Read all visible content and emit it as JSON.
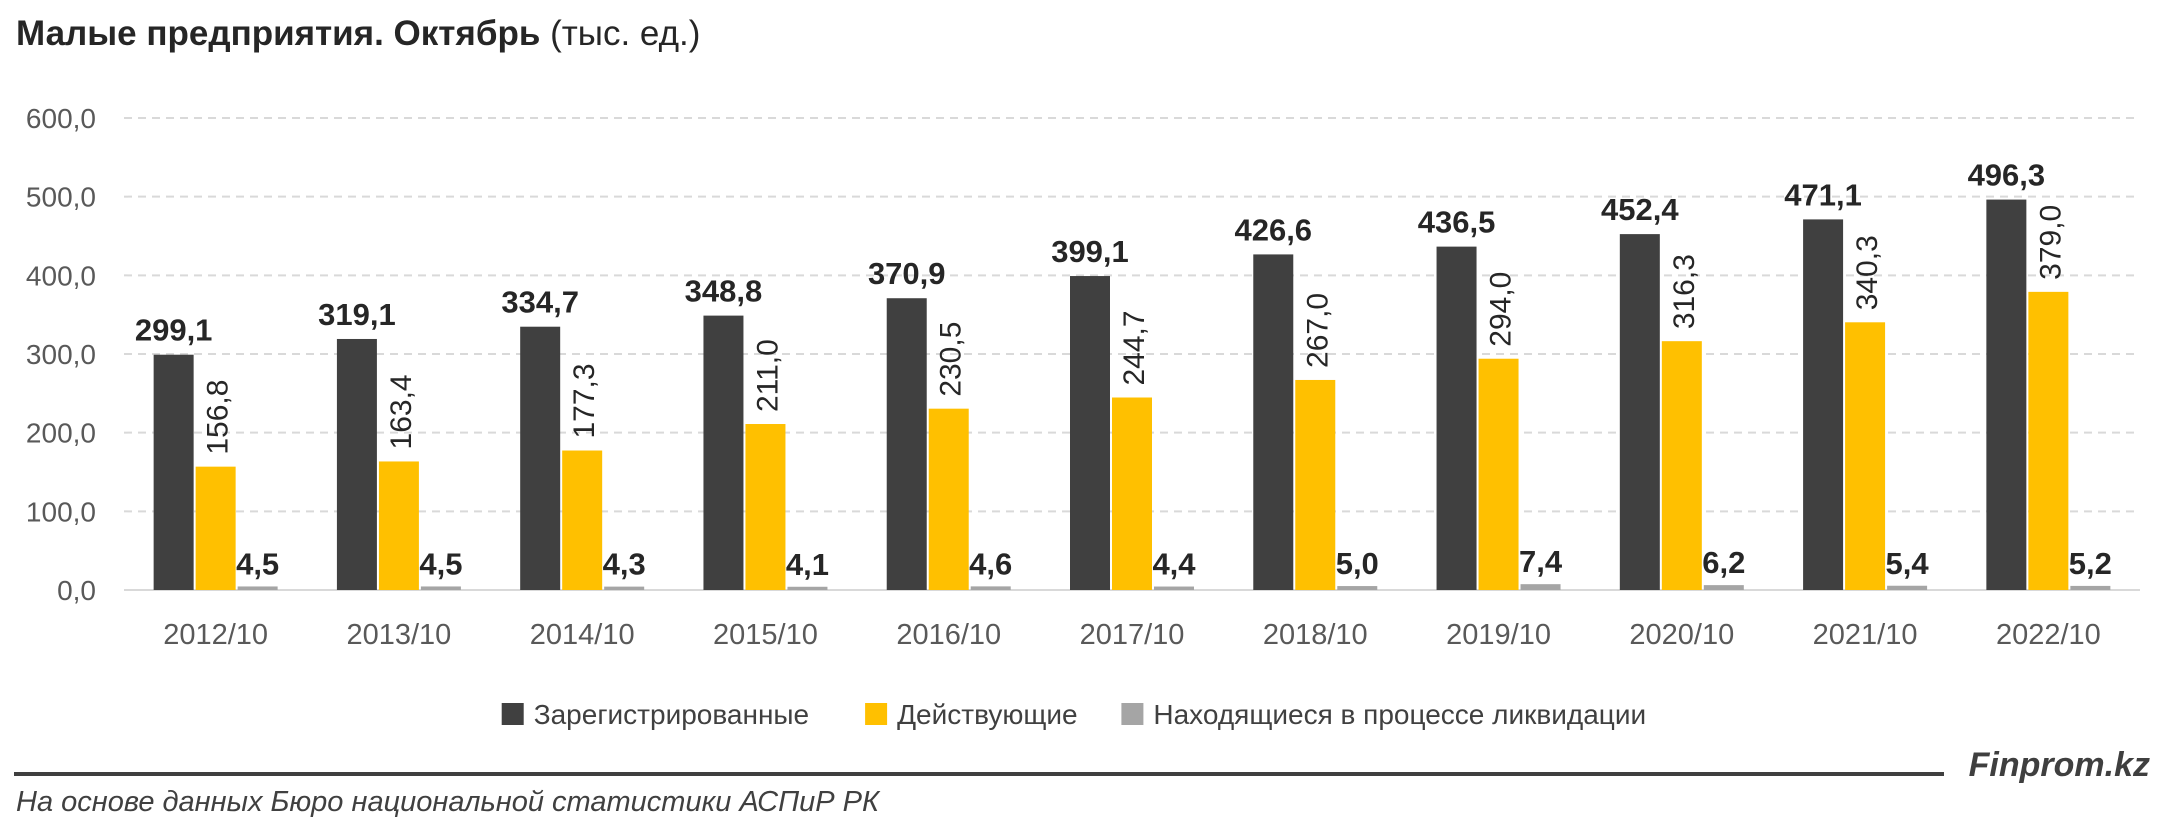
{
  "header": {
    "title_bold": "Малые предприятия. Октябрь",
    "title_unit": "(тыс. ед.)"
  },
  "footer": {
    "brand": "Finprom.kz",
    "source": "На основе данных Бюро национальной статистики АСПиР РК"
  },
  "chart_data": {
    "type": "bar",
    "categories": [
      "2012/10",
      "2013/10",
      "2014/10",
      "2015/10",
      "2016/10",
      "2017/10",
      "2018/10",
      "2019/10",
      "2020/10",
      "2021/10",
      "2022/10"
    ],
    "series": [
      {
        "name": "Зарегистрированные",
        "color": "#404040",
        "values": [
          299.1,
          319.1,
          334.7,
          348.8,
          370.9,
          399.1,
          426.6,
          436.5,
          452.4,
          471.1,
          496.3
        ],
        "labels": [
          "299,1",
          "319,1",
          "334,7",
          "348,8",
          "370,9",
          "399,1",
          "426,6",
          "436,5",
          "452,4",
          "471,1",
          "496,3"
        ]
      },
      {
        "name": "Действующие",
        "color": "#ffc000",
        "values": [
          156.8,
          163.4,
          177.3,
          211.0,
          230.5,
          244.7,
          267.0,
          294.0,
          316.3,
          340.3,
          379.0
        ],
        "labels": [
          "156,8",
          "163,4",
          "177,3",
          "211,0",
          "230,5",
          "244,7",
          "267,0",
          "294,0",
          "316,3",
          "340,3",
          "379,0"
        ]
      },
      {
        "name": "Находящиеся в процессе ликвидации",
        "color": "#a5a5a5",
        "values": [
          4.5,
          4.5,
          4.3,
          4.1,
          4.6,
          4.4,
          5.0,
          7.4,
          6.2,
          5.4,
          5.2
        ],
        "labels": [
          "4,5",
          "4,5",
          "4,3",
          "4,1",
          "4,6",
          "4,4",
          "5,0",
          "7,4",
          "6,2",
          "5,4",
          "5,2"
        ]
      }
    ],
    "yticks": [
      "0,0",
      "100,0",
      "200,0",
      "300,0",
      "400,0",
      "500,0",
      "600,0"
    ],
    "ylim": [
      0,
      600
    ],
    "grid": true,
    "legend": "bottom"
  }
}
